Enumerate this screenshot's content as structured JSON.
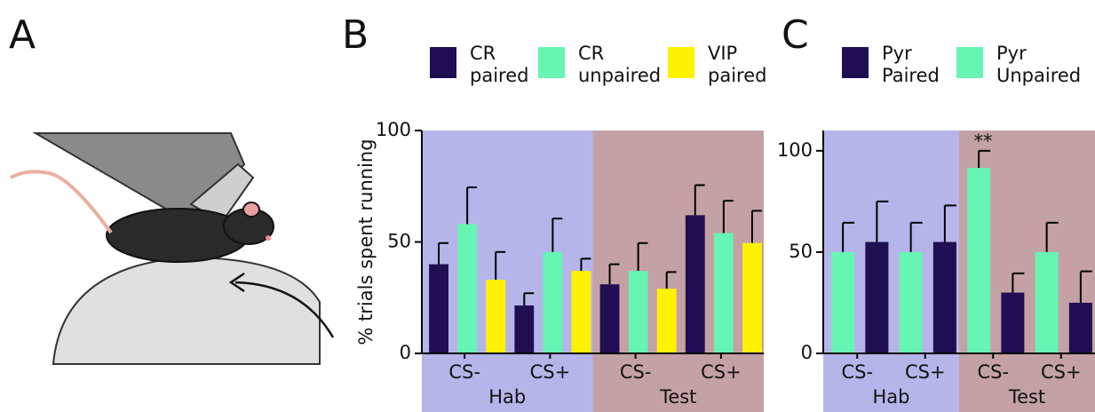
{
  "panel_labels": [
    "A",
    "B",
    "C"
  ],
  "chart_data": [
    {
      "type": "bar",
      "y_label": "% trials spent running",
      "categories": [
        "CS-",
        "CS+",
        "CS-",
        "CS+"
      ],
      "groups": [
        "Hab",
        "Test"
      ],
      "group_colors": [
        "#b5b5ea",
        "#c4a1a5"
      ],
      "series": [
        {
          "name": "CR paired",
          "color": "#1f0e52",
          "values": [
            40,
            21.5,
            31,
            62
          ],
          "errors": [
            9.5,
            5.5,
            9,
            13.5
          ]
        },
        {
          "name": "CR unpaired",
          "color": "#66f5b3",
          "values": [
            58,
            45.5,
            37,
            54
          ],
          "errors": [
            16.5,
            15,
            12.5,
            14.5
          ]
        },
        {
          "name": "VIP paired",
          "color": "#fff200",
          "values": [
            33,
            37,
            29,
            49.5
          ],
          "errors": [
            12.5,
            5.5,
            7.5,
            14.5
          ]
        }
      ],
      "ylim": [
        0,
        100
      ],
      "yticks": [
        0,
        50,
        100
      ]
    },
    {
      "type": "bar",
      "categories": [
        "CS-",
        "CS+",
        "CS-",
        "CS+"
      ],
      "groups": [
        "Hab",
        "Test"
      ],
      "group_colors": [
        "#b5b5ea",
        "#c4a1a5"
      ],
      "series": [
        {
          "name": "Pyr Paired",
          "color": "#1f0e52",
          "values": [
            55,
            55,
            30,
            25
          ],
          "errors": [
            20,
            18,
            9.5,
            15.5
          ]
        },
        {
          "name": "Pyr Unpaired",
          "color": "#66f5b3",
          "values": [
            50,
            50,
            91.5,
            50
          ],
          "errors": [
            14.5,
            14.5,
            8.5,
            14.5
          ]
        }
      ],
      "annotation": "**",
      "ylim": [
        0,
        110
      ],
      "yticks": [
        0,
        50,
        100
      ]
    }
  ]
}
